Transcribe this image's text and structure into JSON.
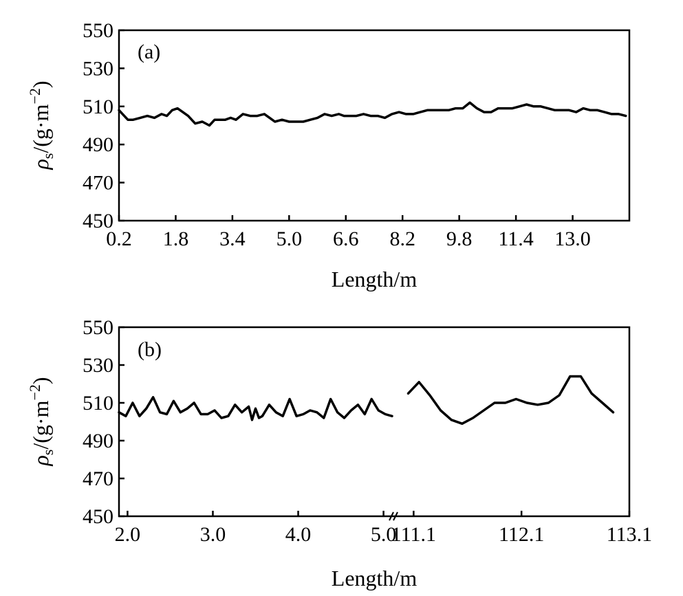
{
  "chart_data": [
    {
      "type": "line",
      "panel_label": "(a)",
      "xlabel": "Length/m",
      "ylabel": "ρs/(g·m−2)",
      "ylabel_parts": {
        "symbol": "ρ",
        "sub": "s",
        "pre": "/(g·m",
        "sup": "−2",
        "post": ")"
      },
      "xlim": [
        0.2,
        14.6
      ],
      "ylim": [
        450,
        550
      ],
      "xticks": [
        "0.2",
        "1.8",
        "3.4",
        "5.0",
        "6.6",
        "8.2",
        "9.8",
        "11.4",
        "13.0"
      ],
      "yticks": [
        "450",
        "470",
        "490",
        "510",
        "530",
        "550"
      ],
      "grid": false,
      "series": [
        {
          "x": [
            0.2,
            0.3,
            0.45,
            0.6,
            0.8,
            1.0,
            1.2,
            1.4,
            1.55,
            1.7,
            1.85,
            2.0,
            2.15,
            2.35,
            2.55,
            2.75,
            2.9,
            3.05,
            3.2,
            3.35,
            3.5,
            3.7,
            3.9,
            4.1,
            4.3,
            4.45,
            4.6,
            4.8,
            5.0,
            5.2,
            5.4,
            5.6,
            5.8,
            6.0,
            6.2,
            6.4,
            6.55,
            6.7,
            6.9,
            7.1,
            7.3,
            7.5,
            7.7,
            7.9,
            8.1,
            8.3,
            8.5,
            8.7,
            8.9,
            9.1,
            9.3,
            9.5,
            9.7,
            9.9,
            10.1,
            10.3,
            10.5,
            10.7,
            10.9,
            11.1,
            11.3,
            11.5,
            11.7,
            11.9,
            12.1,
            12.3,
            12.5,
            12.7,
            12.9,
            13.1,
            13.3,
            13.5,
            13.7,
            13.9,
            14.1,
            14.3,
            14.5
          ],
          "y": [
            508,
            506,
            503,
            503,
            504,
            505,
            504,
            506,
            505,
            508,
            509,
            507,
            505,
            501,
            502,
            500,
            503,
            503,
            503,
            504,
            503,
            506,
            505,
            505,
            506,
            504,
            502,
            503,
            502,
            502,
            502,
            503,
            504,
            506,
            505,
            506,
            505,
            505,
            505,
            506,
            505,
            505,
            504,
            506,
            507,
            506,
            506,
            507,
            508,
            508,
            508,
            508,
            509,
            509,
            512,
            509,
            507,
            507,
            509,
            509,
            509,
            510,
            511,
            510,
            510,
            509,
            508,
            508,
            508,
            507,
            509,
            508,
            508,
            507,
            506,
            506,
            505
          ]
        }
      ]
    },
    {
      "type": "line",
      "panel_label": "(b)",
      "xlabel": "Length/m",
      "ylabel": "ρs/(g·m−2)",
      "ylabel_parts": {
        "symbol": "ρ",
        "sub": "s",
        "pre": "/(g·m",
        "sup": "−2",
        "post": ")"
      },
      "ylim": [
        450,
        550
      ],
      "broken_axis": true,
      "segments": [
        {
          "xlim": [
            1.9,
            5.1
          ],
          "xticks": [
            "2.0",
            "3.0",
            "4.0",
            "5.0"
          ]
        },
        {
          "xlim": [
            110.9,
            113.1
          ],
          "xticks": [
            "111.1",
            "112.1",
            "113.1"
          ]
        }
      ],
      "yticks": [
        "450",
        "470",
        "490",
        "510",
        "530",
        "550"
      ],
      "grid": false,
      "series": [
        {
          "segment": 0,
          "x": [
            1.9,
            1.98,
            2.06,
            2.14,
            2.22,
            2.3,
            2.38,
            2.46,
            2.54,
            2.62,
            2.7,
            2.78,
            2.86,
            2.94,
            3.02,
            3.1,
            3.18,
            3.26,
            3.34,
            3.42,
            3.46,
            3.5,
            3.54,
            3.58,
            3.66,
            3.74,
            3.82,
            3.9,
            3.98,
            4.06,
            4.14,
            4.22,
            4.3,
            4.38,
            4.46,
            4.54,
            4.62,
            4.7,
            4.78,
            4.86,
            4.94,
            5.02,
            5.1
          ],
          "y": [
            505,
            503,
            510,
            503,
            507,
            513,
            505,
            504,
            511,
            505,
            507,
            510,
            504,
            504,
            506,
            502,
            503,
            509,
            505,
            508,
            501,
            507,
            502,
            503,
            509,
            505,
            503,
            512,
            503,
            504,
            506,
            505,
            502,
            512,
            505,
            502,
            506,
            509,
            504,
            512,
            506,
            504,
            503
          ]
        },
        {
          "segment": 1,
          "x": [
            111.05,
            111.15,
            111.25,
            111.35,
            111.45,
            111.55,
            111.65,
            111.75,
            111.85,
            111.95,
            112.05,
            112.15,
            112.25,
            112.35,
            112.45,
            112.55,
            112.65,
            112.75,
            112.85,
            112.95
          ],
          "y": [
            515,
            521,
            514,
            506,
            501,
            499,
            502,
            506,
            510,
            510,
            512,
            510,
            509,
            510,
            514,
            524,
            524,
            515,
            510,
            505
          ]
        }
      ]
    }
  ]
}
